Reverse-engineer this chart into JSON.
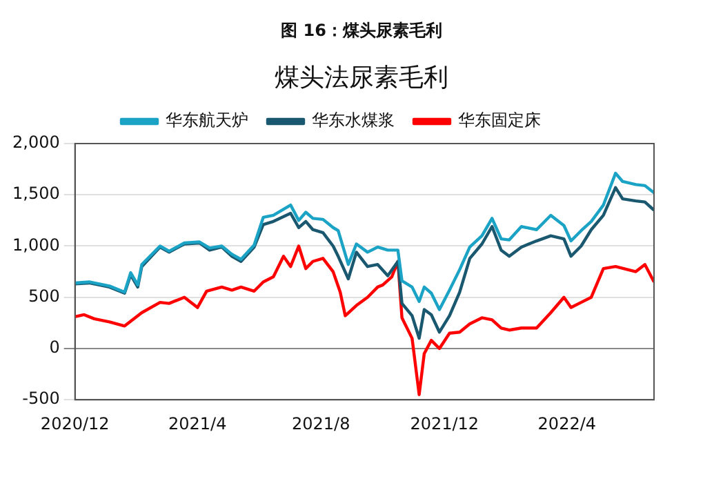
{
  "chart_data": {
    "type": "line",
    "title": "图 16：煤头尿素毛利",
    "subtitle": "煤头法尿素毛利",
    "x": [
      "2020-12-01",
      "2020-12-15",
      "2021-01-04",
      "2021-01-19",
      "2021-01-25",
      "2021-02-01",
      "2021-02-05",
      "2021-02-23",
      "2021-03-04",
      "2021-03-19",
      "2021-04-03",
      "2021-04-13",
      "2021-04-25",
      "2021-05-05",
      "2021-05-14",
      "2021-05-27",
      "2021-06-05",
      "2021-06-15",
      "2021-07-02",
      "2021-07-10",
      "2021-07-17",
      "2021-07-24",
      "2021-08-03",
      "2021-08-13",
      "2021-08-18",
      "2021-08-28",
      "2021-09-05",
      "2021-09-16",
      "2021-09-26",
      "2021-10-06",
      "2021-10-16",
      "2021-10-20",
      "2021-10-30",
      "2021-11-06",
      "2021-11-11",
      "2021-11-18",
      "2021-11-26",
      "2021-12-06",
      "2021-12-16",
      "2021-12-26",
      "2022-01-07",
      "2022-01-17",
      "2022-01-26",
      "2022-02-03",
      "2022-02-15",
      "2022-03-02",
      "2022-03-16",
      "2022-03-29",
      "2022-04-05",
      "2022-04-15",
      "2022-04-25",
      "2022-05-07",
      "2022-05-19",
      "2022-05-26",
      "2022-06-08",
      "2022-06-17",
      "2022-06-26"
    ],
    "series": [
      {
        "name": "华东航天炉",
        "color": "#1ba3c6",
        "values": [
          640,
          650,
          610,
          550,
          740,
          620,
          820,
          1000,
          950,
          1030,
          1040,
          980,
          1000,
          920,
          870,
          1010,
          1280,
          1300,
          1400,
          1250,
          1330,
          1270,
          1260,
          1180,
          1150,
          820,
          1020,
          940,
          990,
          960,
          960,
          660,
          600,
          460,
          600,
          540,
          380,
          570,
          770,
          990,
          1100,
          1270,
          1070,
          1060,
          1190,
          1160,
          1300,
          1200,
          1050,
          1150,
          1240,
          1400,
          1710,
          1630,
          1600,
          1590,
          1520
        ]
      },
      {
        "name": "华东水煤浆",
        "color": "#1a5870",
        "values": [
          630,
          640,
          600,
          540,
          720,
          600,
          800,
          990,
          940,
          1020,
          1030,
          960,
          990,
          900,
          850,
          990,
          1210,
          1240,
          1320,
          1180,
          1240,
          1160,
          1130,
          1000,
          900,
          680,
          940,
          800,
          820,
          710,
          850,
          440,
          320,
          100,
          380,
          330,
          160,
          320,
          550,
          880,
          1020,
          1190,
          960,
          900,
          990,
          1050,
          1100,
          1070,
          900,
          1000,
          1160,
          1300,
          1570,
          1460,
          1440,
          1430,
          1350
        ]
      },
      {
        "name": "华东固定床",
        "color": "#ff0000",
        "x": [
          "2020-12-01",
          "2020-12-10",
          "2020-12-20",
          "2021-01-04",
          "2021-01-19",
          "2021-02-05",
          "2021-02-23",
          "2021-03-04",
          "2021-03-19",
          "2021-04-01",
          "2021-04-10",
          "2021-04-25",
          "2021-05-05",
          "2021-05-14",
          "2021-05-27",
          "2021-06-05",
          "2021-06-15",
          "2021-06-25",
          "2021-07-02",
          "2021-07-10",
          "2021-07-17",
          "2021-07-24",
          "2021-08-03",
          "2021-08-13",
          "2021-08-20",
          "2021-08-25",
          "2021-09-05",
          "2021-09-16",
          "2021-09-26",
          "2021-10-01",
          "2021-10-10",
          "2021-10-16",
          "2021-10-20",
          "2021-10-30",
          "2021-11-06",
          "2021-11-11",
          "2021-11-18",
          "2021-11-26",
          "2021-12-06",
          "2021-12-16",
          "2021-12-26",
          "2022-01-07",
          "2022-01-17",
          "2022-01-26",
          "2022-02-03",
          "2022-02-15",
          "2022-03-02",
          "2022-03-16",
          "2022-03-29",
          "2022-04-05",
          "2022-04-15",
          "2022-04-25",
          "2022-05-07",
          "2022-05-19",
          "2022-06-08",
          "2022-06-17",
          "2022-06-26"
        ],
        "values": [
          310,
          330,
          290,
          260,
          220,
          350,
          450,
          440,
          500,
          400,
          560,
          600,
          570,
          600,
          560,
          650,
          700,
          900,
          800,
          1000,
          780,
          850,
          880,
          750,
          550,
          320,
          420,
          500,
          600,
          620,
          700,
          850,
          300,
          100,
          -450,
          -50,
          80,
          0,
          150,
          160,
          240,
          300,
          280,
          200,
          180,
          200,
          200,
          350,
          500,
          400,
          450,
          500,
          780,
          800,
          750,
          820,
          650
        ]
      }
    ],
    "xlim": [
      "2020-12-01",
      "2022-06-26"
    ],
    "xticks": [
      {
        "value": "2020-12-01",
        "label": "2020/12"
      },
      {
        "value": "2021-04-01",
        "label": "2021/4"
      },
      {
        "value": "2021-08-01",
        "label": "2021/8"
      },
      {
        "value": "2021-12-01",
        "label": "2021/12"
      },
      {
        "value": "2022-04-01",
        "label": "2022/4"
      }
    ],
    "ylim": [
      -500,
      2000
    ],
    "yticks": [
      {
        "value": -500,
        "label": "-500"
      },
      {
        "value": 0,
        "label": "0"
      },
      {
        "value": 500,
        "label": "500"
      },
      {
        "value": 1000,
        "label": "1,000"
      },
      {
        "value": 1500,
        "label": "1,500"
      },
      {
        "value": 2000,
        "label": "2,000"
      }
    ],
    "grid": "y",
    "legend": "top",
    "marker": "none",
    "line_style": "solid"
  }
}
